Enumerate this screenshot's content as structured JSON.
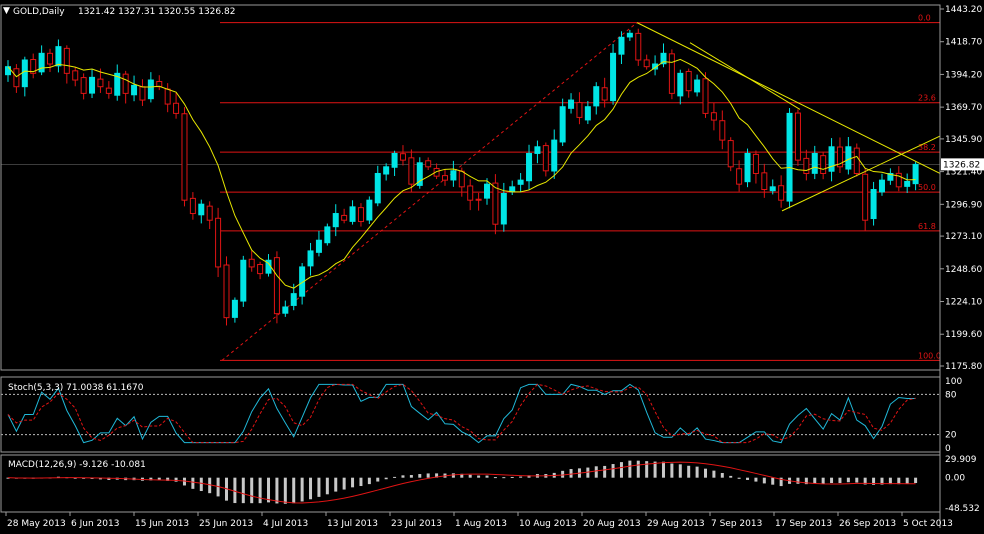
{
  "header": {
    "symbol": "GOLD,Daily",
    "ohlc": "1321.42 1327.31 1320.55 1326.82"
  },
  "colors": {
    "background": "#000000",
    "bull_candle": "#00e5e5",
    "bear_candle": "#e01414",
    "moving_average": "#e8e800",
    "fibonacci": "#e01414",
    "trendline": "#e8e800",
    "axis_border": "#9a9a9a",
    "stoch_main": "#20b8d8",
    "stoch_signal": "#e01414",
    "macd_hist": "#c8c8c8",
    "macd_signal": "#e01414"
  },
  "chart_data": [
    {
      "type": "candlestick",
      "title": "GOLD,Daily",
      "price_axis_labels": [
        "1443.20",
        "1418.70",
        "1394.20",
        "1369.70",
        "1345.90",
        "1321.40",
        "1296.90",
        "1273.10",
        "1248.60",
        "1224.10",
        "1199.60",
        "1175.80"
      ],
      "current_price": "1326.82",
      "ylim": [
        1175.8,
        1443.2
      ],
      "date_labels": [
        "28 May 2013",
        "6 Jun 2013",
        "15 Jun 2013",
        "25 Jun 2013",
        "4 Jul 2013",
        "13 Jul 2013",
        "23 Jul 2013",
        "1 Aug 2013",
        "10 Aug 2013",
        "20 Aug 2013",
        "29 Aug 2013",
        "7 Sep 2013",
        "17 Sep 2013",
        "26 Sep 2013",
        "5 Oct 2013"
      ],
      "fibonacci_levels": [
        {
          "label": "0.0",
          "price": 1433
        },
        {
          "label": "23.6",
          "price": 1373
        },
        {
          "label": "38.2",
          "price": 1336
        },
        {
          "label": "50.0",
          "price": 1306
        },
        {
          "label": "61.8",
          "price": 1277
        },
        {
          "label": "100.0",
          "price": 1180
        }
      ],
      "ohlc_close": [
        1400,
        1385,
        1405,
        1395,
        1410,
        1402,
        1415,
        1395,
        1390,
        1380,
        1392,
        1385,
        1380,
        1395,
        1380,
        1386,
        1375,
        1390,
        1385,
        1372,
        1365,
        1300,
        1290,
        1297,
        1285,
        1250,
        1212,
        1225,
        1255,
        1250,
        1245,
        1255,
        1215,
        1220,
        1230,
        1250,
        1262,
        1270,
        1280,
        1290,
        1285,
        1295,
        1284,
        1300,
        1320,
        1325,
        1335,
        1330,
        1312,
        1328,
        1325,
        1318,
        1315,
        1322,
        1310,
        1300,
        1300,
        1312,
        1282,
        1305,
        1310,
        1315,
        1335,
        1340,
        1322,
        1345,
        1370,
        1375,
        1362,
        1370,
        1385,
        1375,
        1410,
        1422,
        1425,
        1405,
        1400,
        1402,
        1410,
        1380,
        1395,
        1382,
        1390,
        1365,
        1360,
        1345,
        1325,
        1312,
        1335,
        1320,
        1308,
        1310,
        1300,
        1365,
        1330,
        1320,
        1335,
        1320,
        1340,
        1325,
        1340,
        1320,
        1285,
        1308,
        1315,
        1320,
        1310,
        1314,
        1326.82
      ],
      "moving_average_note": "",
      "series": [
        {
          "name": "Stoch(5,3,3) 71.0038 61.1670",
          "main": 71.0038,
          "signal": 61.167,
          "levels": [
            "100",
            "80",
            "20",
            "0"
          ]
        },
        {
          "name": "MACD(12,26,9) -9.126 -10.081",
          "macd": -9.126,
          "signal": -10.081,
          "axis_labels": [
            "29.909",
            "0.00",
            "-48.532"
          ]
        }
      ]
    }
  ],
  "stoch_label": "Stoch(5,3,3) 71.0038 61.1670",
  "macd_label": "MACD(12,26,9) -9.126 -10.081"
}
